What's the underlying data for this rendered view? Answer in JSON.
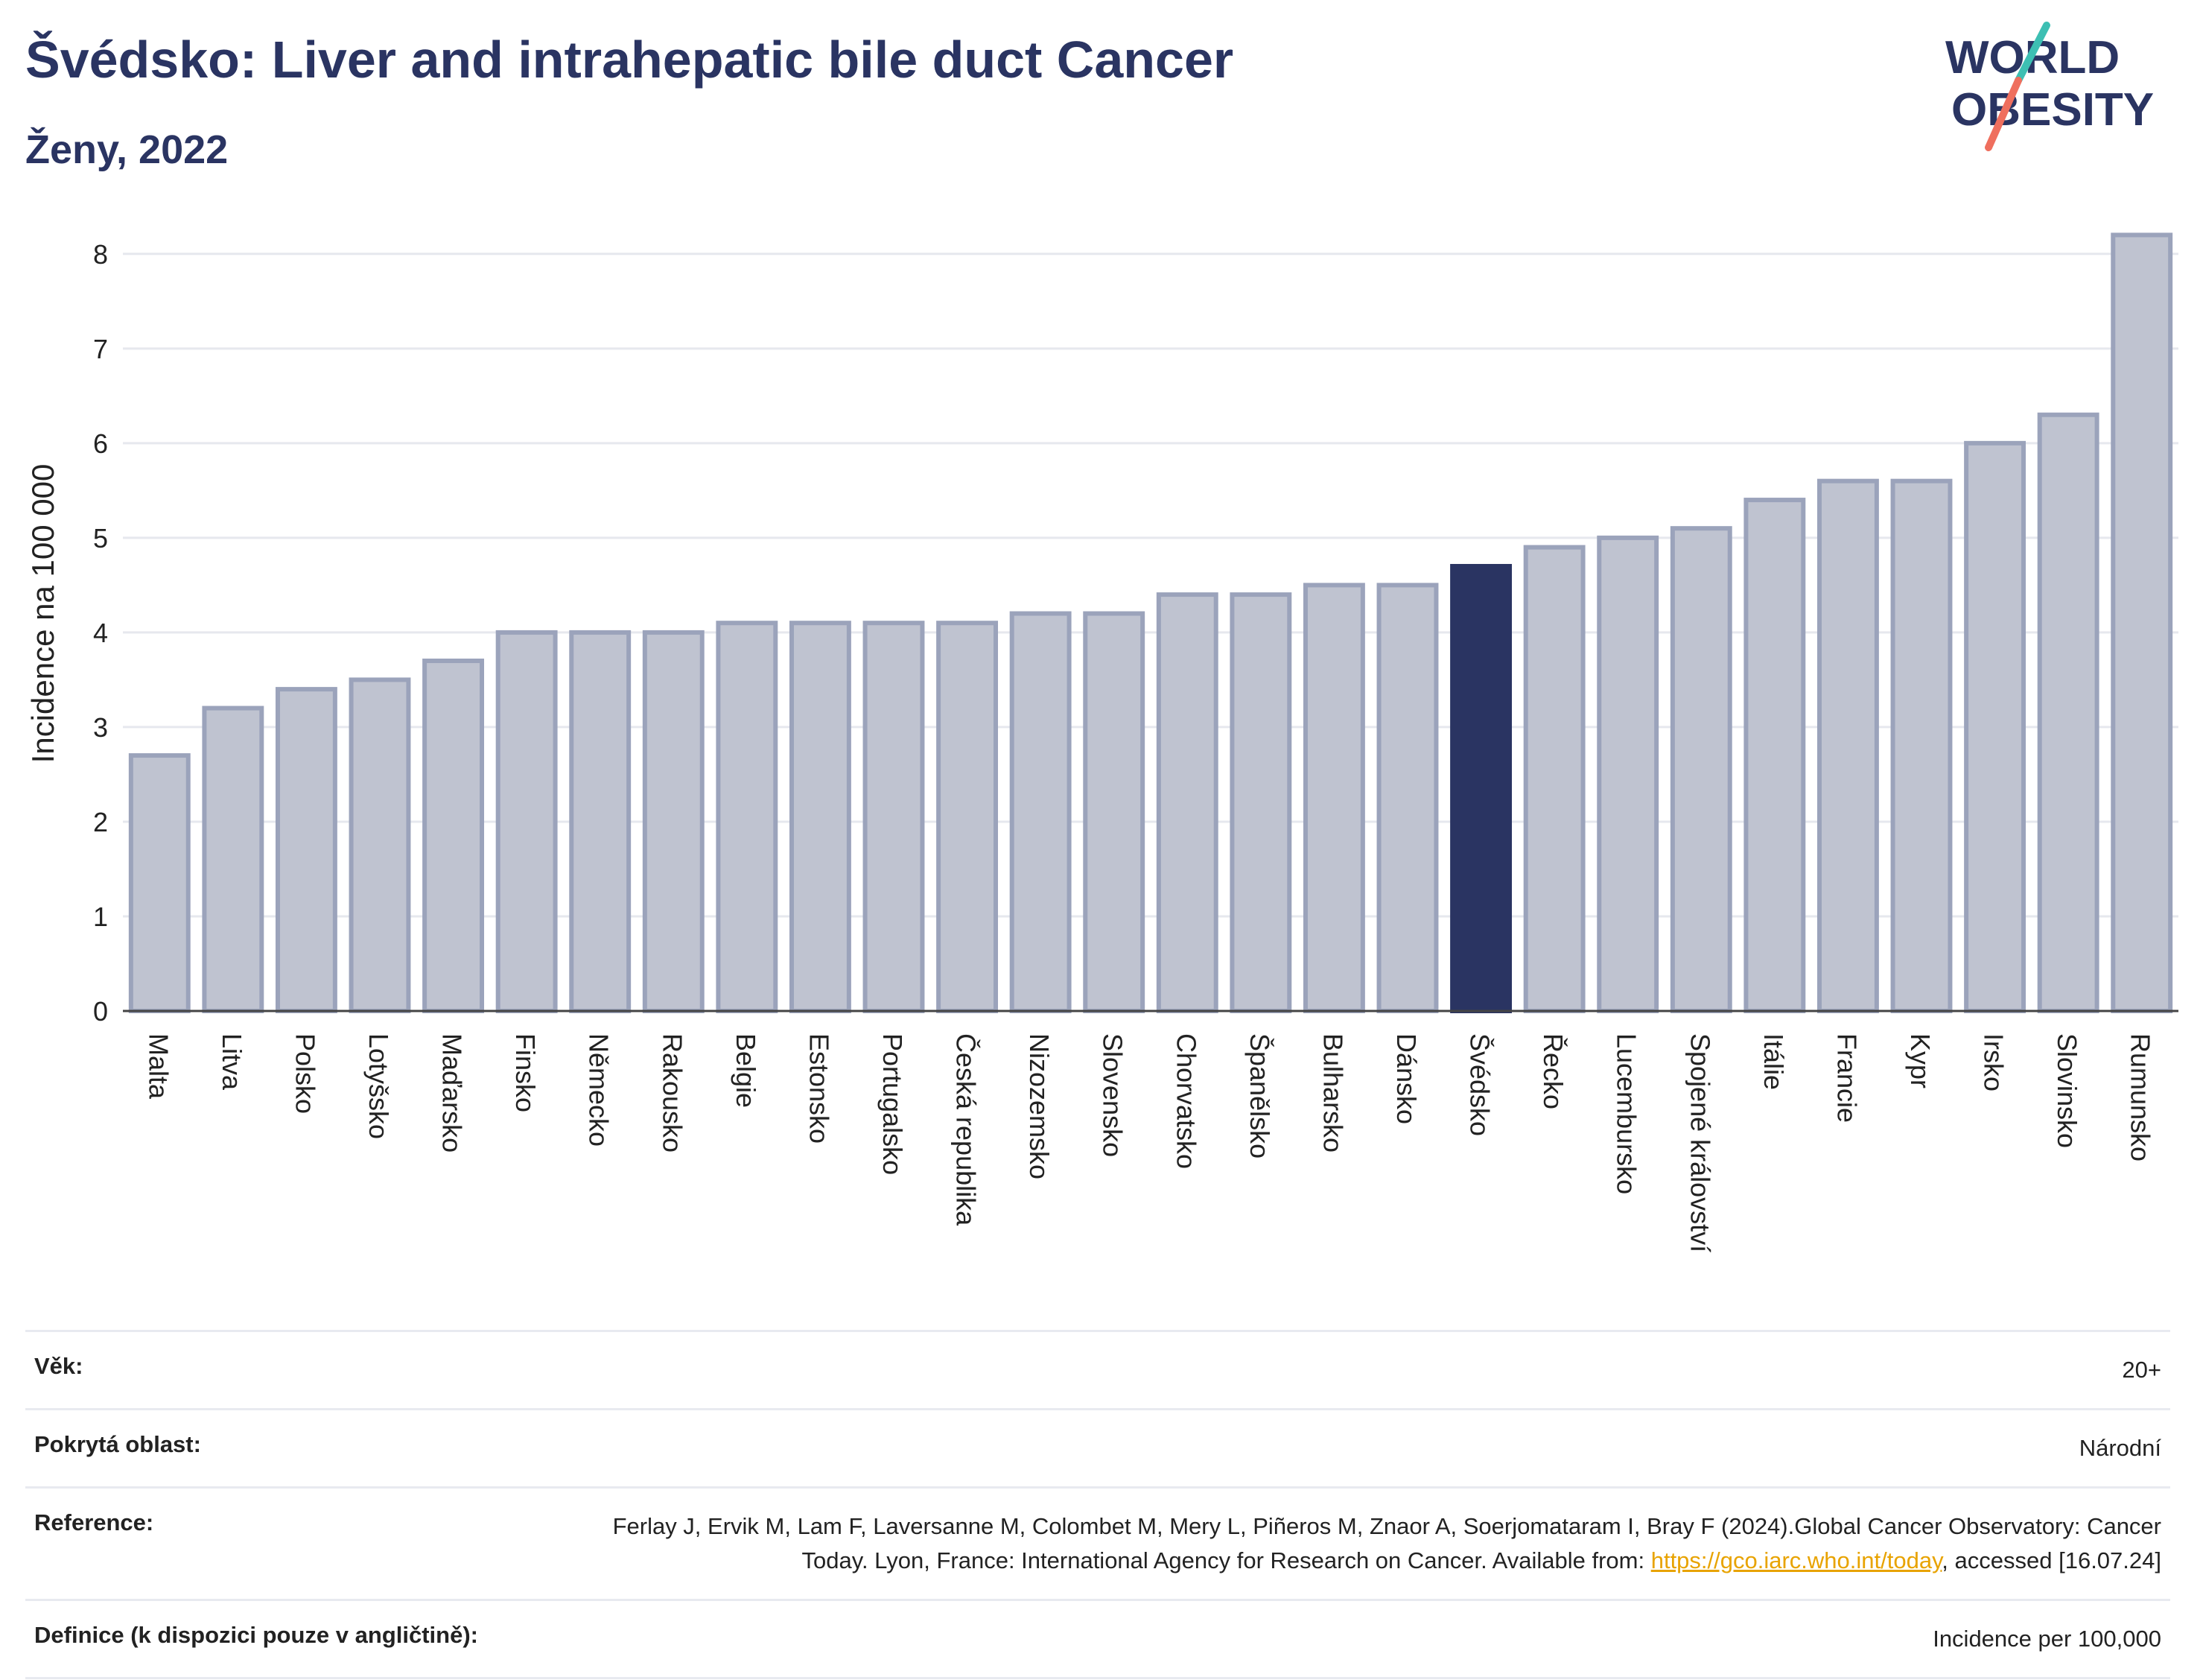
{
  "header": {
    "title": "Švédsko: Liver and intrahepatic bile duct Cancer",
    "subtitle": "Ženy, 2022"
  },
  "logo": {
    "line1": "WORLD",
    "line2": "OBESITY",
    "colors": {
      "text": "#2a3462",
      "slash_teal": "#3dbfb3",
      "slash_coral": "#ef6f5e"
    }
  },
  "chart_data": {
    "type": "bar",
    "ylabel": "Incidence na 100 000",
    "ylim": [
      0,
      8.4
    ],
    "yticks": [
      0,
      1,
      2,
      3,
      4,
      5,
      6,
      7,
      8
    ],
    "grid": true,
    "highlight": "Švédsko",
    "colors": {
      "bar": "#bfc3d0",
      "bar_edge": "#9ba3bb",
      "highlight": "#2a3462"
    },
    "categories": [
      "Malta",
      "Litva",
      "Polsko",
      "Lotyšsko",
      "Maďarsko",
      "Finsko",
      "Německo",
      "Rakousko",
      "Belgie",
      "Estonsko",
      "Portugalsko",
      "Česká republika",
      "Nizozemsko",
      "Slovensko",
      "Chorvatsko",
      "Španělsko",
      "Bulharsko",
      "Dánsko",
      "Švédsko",
      "Řecko",
      "Lucembursko",
      "Spojené království",
      "Itálie",
      "Francie",
      "Kypr",
      "Irsko",
      "Slovinsko",
      "Rumunsko"
    ],
    "values": [
      2.7,
      3.2,
      3.4,
      3.5,
      3.7,
      4.0,
      4.0,
      4.0,
      4.1,
      4.1,
      4.1,
      4.1,
      4.2,
      4.2,
      4.4,
      4.4,
      4.5,
      4.5,
      4.7,
      4.9,
      5.0,
      5.1,
      5.4,
      5.6,
      5.6,
      6.0,
      6.3,
      8.2
    ]
  },
  "info": {
    "age": {
      "label": "Věk:",
      "value": "20+"
    },
    "area": {
      "label": "Pokrytá oblast:",
      "value": "Národní"
    },
    "reference": {
      "label": "Reference:",
      "text1": "Ferlay J, Ervik M, Lam F, Laversanne M, Colombet M, Mery L, Piñeros M, Znaor A, Soerjomataram I, Bray F (2024).Global Cancer Observatory: Cancer Today. Lyon, France: International Agency for Research on Cancer. Available from: ",
      "link": "https://gco.iarc.who.int/today",
      "text2": ", accessed [16.07.24]"
    },
    "definition": {
      "label": "Definice (k dispozici pouze v angličtině):",
      "value": "Incidence per 100,000"
    }
  }
}
